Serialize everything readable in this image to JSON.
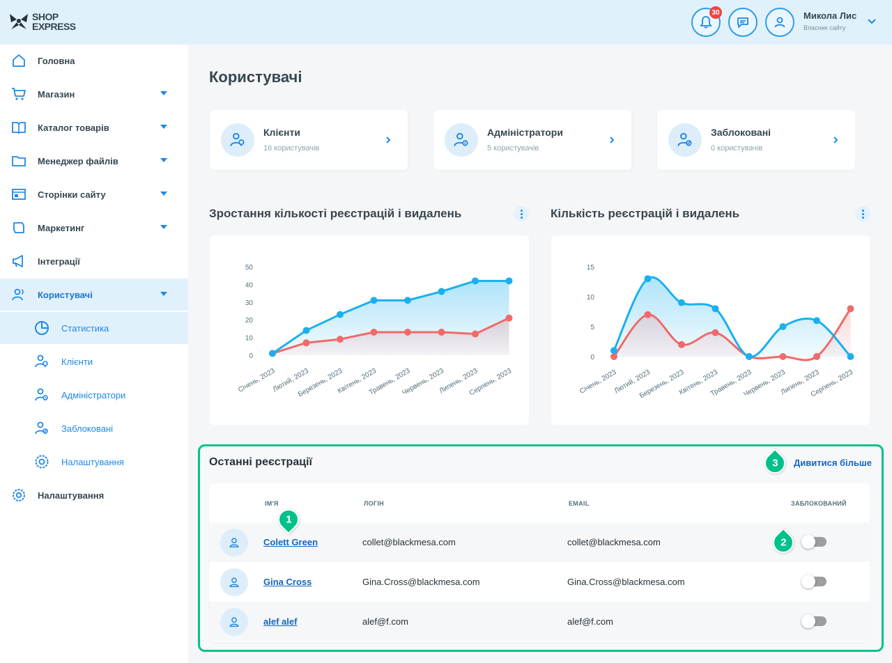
{
  "header": {
    "logo_line1": "SHOP",
    "logo_line2": "EXPRESS",
    "notification_count": "30",
    "user_name": "Микола Лис",
    "user_role": "Власник сайту"
  },
  "sidebar": {
    "items": [
      {
        "label": "Головна",
        "icon": "home-icon"
      },
      {
        "label": "Магазин",
        "icon": "cart-icon"
      },
      {
        "label": "Каталог товарів",
        "icon": "catalog-icon"
      },
      {
        "label": "Менеджер файлів",
        "icon": "folder-icon"
      },
      {
        "label": "Сторінки сайту",
        "icon": "pages-icon"
      },
      {
        "label": "Маркетинг",
        "icon": "marketing-icon"
      },
      {
        "label": "Інтеграції",
        "icon": "megaphone-icon"
      },
      {
        "label": "Користувачі",
        "icon": "users-icon"
      }
    ],
    "sub_items": [
      {
        "label": "Статистика",
        "icon": "chart-pie-icon"
      },
      {
        "label": "Клієнти",
        "icon": "clients-icon"
      },
      {
        "label": "Адміністратори",
        "icon": "admins-icon"
      },
      {
        "label": "Заблоковані",
        "icon": "blocked-icon"
      },
      {
        "label": "Налаштування",
        "icon": "settings-icon"
      }
    ],
    "settings_label": "Налаштування"
  },
  "main": {
    "title": "Користувачі",
    "cards": [
      {
        "title": "Клієнти",
        "subtitle": "16 користувачів"
      },
      {
        "title": "Адміністратори",
        "subtitle": "5 користувачів"
      },
      {
        "title": "Заблоковані",
        "subtitle": "0 користувачів"
      }
    ],
    "chart1_title": "Зростання кількості реєстрацій і видалень",
    "chart2_title": "Кількість реєстрацій і видалень"
  },
  "chart_data": [
    {
      "type": "area",
      "title": "Зростання кількості реєстрацій і видалень",
      "categories": [
        "Січень, 2023",
        "Лютий, 2023",
        "Березень, 2023",
        "Квітень, 2023",
        "Травень, 2023",
        "Червень, 2023",
        "Липень, 2023",
        "Серпень, 2023"
      ],
      "series": [
        {
          "color": "#1ab0f0",
          "values": [
            1,
            14,
            23,
            31,
            31,
            36,
            42,
            42
          ]
        },
        {
          "color": "#f06a6a",
          "values": [
            1,
            7,
            9,
            13,
            13,
            13,
            12,
            21
          ]
        }
      ],
      "ylim": [
        0,
        50
      ],
      "yticks": [
        0,
        10,
        20,
        30,
        40,
        50
      ],
      "grid": false
    },
    {
      "type": "area",
      "title": "Кількість реєстрацій і видалень",
      "categories": [
        "Січень, 2023",
        "Лютий, 2023",
        "Березень, 2023",
        "Квітень, 2023",
        "Травень, 2023",
        "Червень, 2023",
        "Липень, 2023",
        "Серпень, 2023"
      ],
      "series": [
        {
          "color": "#1ab0f0",
          "values": [
            1,
            13,
            9,
            8,
            0,
            5,
            6,
            0
          ]
        },
        {
          "color": "#f06a6a",
          "values": [
            0,
            7,
            2,
            4,
            0,
            0,
            0,
            8
          ]
        }
      ],
      "ylim": [
        0,
        15
      ],
      "yticks": [
        0,
        5,
        10,
        15
      ],
      "grid": false
    }
  ],
  "recent": {
    "title": "Останні реєстрації",
    "see_more": "Дивитися більше",
    "columns": {
      "name": "ІМ'Я",
      "login": "ЛОГІН",
      "email": "EMAIL",
      "blocked": "ЗАБЛОКОВАНИЙ"
    },
    "rows": [
      {
        "name": "Colett Green",
        "login": "collet@blackmesa.com",
        "email": "collet@blackmesa.com",
        "blocked": false
      },
      {
        "name": "Gina Cross",
        "login": "Gina.Cross@blackmesa.com",
        "email": "Gina.Cross@blackmesa.com",
        "blocked": false
      },
      {
        "name": "alef alef",
        "login": "alef@f.com",
        "email": "alef@f.com",
        "blocked": false
      }
    ]
  },
  "markers": [
    "1",
    "2",
    "3"
  ],
  "colors": {
    "accent": "#1e88e5",
    "header_bg": "#e1f1fc",
    "highlight": "#00c18c"
  }
}
